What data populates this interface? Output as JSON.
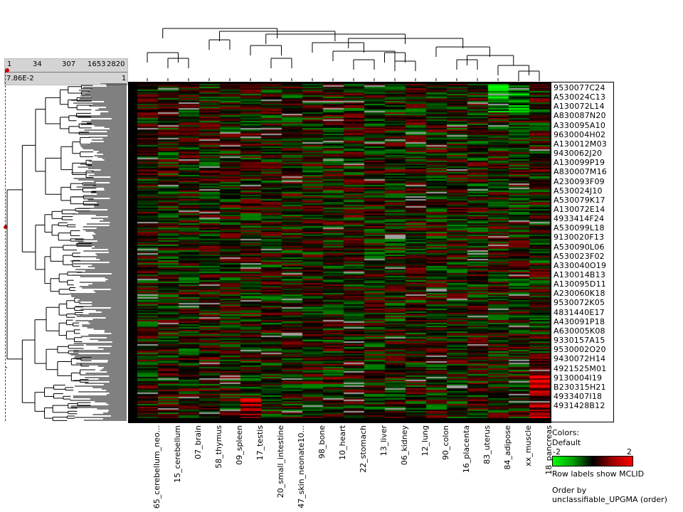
{
  "scale": {
    "ticks": [
      "1",
      "34",
      "307",
      "1653",
      "2820"
    ],
    "min_label": "7.86E-2",
    "max_label": "1"
  },
  "columns": [
    "65_cerebellum_neo...",
    "15_cerebellum",
    "07_brain",
    "58_thymus",
    "09_spleen",
    "17_testis",
    "20_small_intestine",
    "47_skin_neonate10...",
    "98_bone",
    "10_heart",
    "22_stomach",
    "13_liver",
    "06_kidney",
    "12_lung",
    "90_colon",
    "16_placenta",
    "83_uterus",
    "84_adipose",
    "xx_muscle",
    "18_pancreas"
  ],
  "row_labels": [
    "9530077C24",
    "A530024C13",
    "A130072L14",
    "A830087N20",
    "A330095A10",
    "9630004H02",
    "A130012M03",
    "9430062J20",
    "A130099P19",
    "A830007M16",
    "A230093F09",
    "A530024J10",
    "A530079K17",
    "A130072E14",
    "4933414F24",
    "A530099L18",
    "9130020F13",
    "A530090L06",
    "A530023F02",
    "A330040O19",
    "A130014B13",
    "A130095D11",
    "A230060K18",
    "9530072K05",
    "4831440E17",
    "A430091P18",
    "A630005K08",
    "9330157A15",
    "9530002O20",
    "9430072H14",
    "4921525M01",
    "9130004I19",
    "B230315H21",
    "4933407I18",
    "4931428B12"
  ],
  "legend": {
    "title": "Colors:",
    "scheme": "Default",
    "min": "-2",
    "max": "2",
    "row_note": "Row labels show MCLID",
    "order_title": "Order by",
    "order_value": "unclassifiable_UPGMA (order)"
  },
  "colors": {
    "low": "#00ff00",
    "mid": "#000000",
    "high": "#ff0000",
    "missing": "#a0a0a0"
  }
}
